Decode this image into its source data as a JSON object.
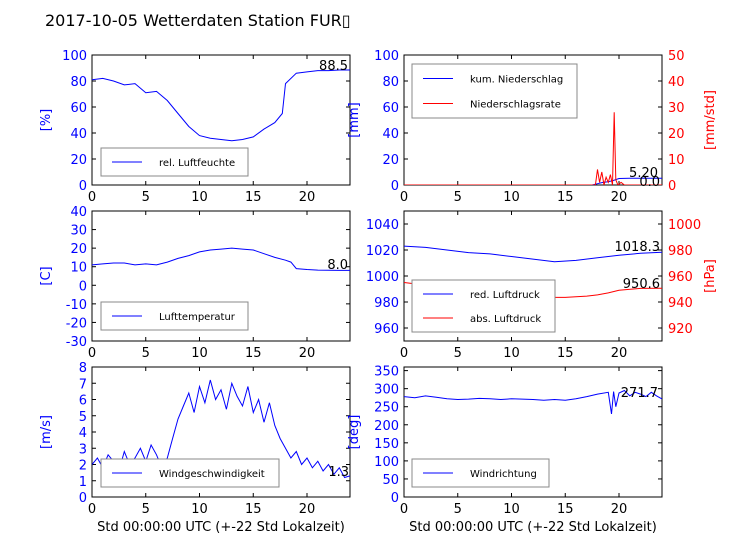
{
  "title": "2017-10-05 Wetterdaten Station FUR▯",
  "colors": {
    "blue": "#0000ff",
    "red": "#ff0000",
    "black": "#000000",
    "box_bg": "#ffffff",
    "box_border": "#888888"
  },
  "chart_data": [
    {
      "id": "humidity",
      "type": "line",
      "xlim": [
        0,
        24
      ],
      "xticks": [
        0,
        5,
        10,
        15,
        20
      ],
      "ylim": [
        0,
        100
      ],
      "yticks": [
        0,
        20,
        40,
        60,
        80,
        100
      ],
      "ylabel": "[%]",
      "ylabel_color": "blue",
      "xlabel": "",
      "value_label": "88.5",
      "legend_position": "lower-left",
      "series": [
        {
          "name": "rel. Luftfeuchte",
          "color": "blue",
          "axis": "left",
          "x": [
            0,
            1,
            2,
            3,
            4,
            5,
            6,
            7,
            8,
            9,
            10,
            11,
            12,
            13,
            14,
            15,
            16,
            17,
            17.7,
            18,
            19,
            20,
            21,
            22,
            23,
            24
          ],
          "y": [
            81,
            82,
            80,
            77,
            78,
            71,
            72,
            65,
            55,
            45,
            38,
            36,
            35,
            34,
            35,
            37,
            43,
            48,
            55,
            78,
            86,
            87,
            88,
            88,
            88.5,
            88.5
          ]
        }
      ]
    },
    {
      "id": "precipitation",
      "type": "line",
      "xlim": [
        0,
        24
      ],
      "xticks": [
        0,
        5,
        10,
        15,
        20
      ],
      "ylim": [
        0,
        100
      ],
      "yticks": [
        0,
        20,
        40,
        60,
        80,
        100
      ],
      "ylabel": "[mm]",
      "ylabel_color": "blue",
      "y2lim": [
        0,
        50
      ],
      "y2ticks": [
        0,
        10,
        20,
        30,
        40,
        50
      ],
      "y2label": "[mm/std]",
      "y2label_color": "red",
      "xlabel": "",
      "value_labels": [
        "5.20",
        "0.0"
      ],
      "legend_position": "upper-left",
      "series": [
        {
          "name": "kum. Niederschlag",
          "color": "blue",
          "axis": "left",
          "x": [
            0,
            17.5,
            18,
            18.5,
            19,
            19.5,
            20,
            21,
            22,
            23,
            24
          ],
          "y": [
            0,
            0,
            1,
            2,
            2.5,
            3.5,
            5,
            5.2,
            5.2,
            5.2,
            5.2
          ]
        },
        {
          "name": "Niederschlagsrate",
          "color": "red",
          "axis": "right",
          "x": [
            0,
            17.8,
            18.0,
            18.2,
            18.4,
            18.6,
            18.8,
            19.0,
            19.2,
            19.4,
            19.55,
            19.7,
            19.9,
            20.2,
            20.5,
            21,
            22,
            24
          ],
          "y": [
            0,
            0,
            6,
            1,
            5,
            0,
            3,
            1,
            4,
            0,
            28,
            2,
            0,
            1,
            0,
            0,
            0,
            0
          ]
        }
      ]
    },
    {
      "id": "temperature",
      "type": "line",
      "xlim": [
        0,
        24
      ],
      "xticks": [
        0,
        5,
        10,
        15,
        20
      ],
      "ylim": [
        -30,
        40
      ],
      "yticks": [
        -30,
        -20,
        -10,
        0,
        10,
        20,
        30,
        40
      ],
      "ylabel": "[C]",
      "ylabel_color": "blue",
      "xlabel": "",
      "value_label": "8.0",
      "legend_position": "lower-left",
      "series": [
        {
          "name": "Lufttemperatur",
          "color": "blue",
          "axis": "left",
          "x": [
            0,
            1,
            2,
            3,
            4,
            5,
            6,
            7,
            8,
            9,
            10,
            11,
            12,
            13,
            14,
            15,
            16,
            17,
            18,
            18.5,
            19,
            20,
            21,
            22,
            23,
            24
          ],
          "y": [
            11,
            11.5,
            12,
            12,
            11,
            11.5,
            11,
            12.5,
            14.5,
            16,
            18,
            19,
            19.5,
            20,
            19.5,
            19,
            17,
            15,
            13.5,
            12.5,
            9,
            8.5,
            8.2,
            8.1,
            8.0,
            8.0
          ]
        }
      ]
    },
    {
      "id": "pressure",
      "type": "line",
      "xlim": [
        0,
        24
      ],
      "xticks": [
        0,
        5,
        10,
        15,
        20
      ],
      "ylim": [
        950,
        1050
      ],
      "yticks": [
        960,
        980,
        1000,
        1020,
        1040
      ],
      "ylabel": "",
      "y2lim": [
        910,
        1010
      ],
      "y2ticks": [
        920,
        940,
        960,
        980,
        1000
      ],
      "y2label": "[hPa]",
      "y2label_color": "red",
      "xlabel": "",
      "value_labels": [
        "1018.3",
        "950.6"
      ],
      "legend_position": "lower-left",
      "series": [
        {
          "name": "red. Luftdruck",
          "color": "blue",
          "axis": "left",
          "x": [
            0,
            2,
            4,
            6,
            8,
            10,
            12,
            14,
            16,
            18,
            20,
            22,
            24
          ],
          "y": [
            1023,
            1022,
            1020,
            1018,
            1017,
            1015,
            1013,
            1011,
            1012,
            1014,
            1016,
            1017.5,
            1018.3
          ]
        },
        {
          "name": "abs. Luftdruck",
          "color": "red",
          "axis": "right",
          "x": [
            0,
            2,
            4,
            6,
            8,
            10,
            12,
            14,
            15,
            16,
            17,
            18,
            19,
            20,
            22,
            24
          ],
          "y": [
            955,
            953,
            950,
            948,
            947,
            946,
            945,
            943.5,
            943.5,
            944,
            944.5,
            945.5,
            947,
            949,
            950.5,
            950.6
          ]
        }
      ]
    },
    {
      "id": "wind_speed",
      "type": "line",
      "xlim": [
        0,
        24
      ],
      "xticks": [
        0,
        5,
        10,
        15,
        20
      ],
      "ylim": [
        0,
        8
      ],
      "yticks": [
        0,
        1,
        2,
        3,
        4,
        5,
        6,
        7,
        8
      ],
      "ylabel": "[m/s]",
      "ylabel_color": "blue",
      "xlabel": "Std 00:00:00 UTC (+-22 Std Lokalzeit)",
      "value_label": "1.3",
      "legend_position": "lower-left",
      "series": [
        {
          "name": "Windgeschwindigkeit",
          "color": "blue",
          "axis": "left",
          "x": [
            0,
            0.5,
            1,
            1.5,
            2,
            2.5,
            3,
            3.5,
            4,
            4.5,
            5,
            5.5,
            6,
            6.5,
            7,
            7.5,
            8,
            8.5,
            9,
            9.5,
            10,
            10.5,
            11,
            11.5,
            12,
            12.5,
            13,
            13.5,
            14,
            14.5,
            15,
            15.5,
            16,
            16.5,
            17,
            17.5,
            18,
            18.5,
            19,
            19.5,
            20,
            20.5,
            21,
            21.5,
            22,
            22.5,
            23,
            23.5,
            24
          ],
          "y": [
            2.0,
            2.4,
            1.8,
            2.6,
            2.2,
            1.6,
            2.8,
            2.0,
            2.4,
            3.0,
            2.2,
            3.2,
            2.6,
            1.8,
            2.4,
            3.6,
            4.8,
            5.6,
            6.4,
            5.2,
            6.8,
            5.8,
            7.2,
            6.0,
            6.6,
            5.4,
            7.0,
            6.2,
            5.6,
            6.8,
            5.2,
            6.0,
            4.6,
            5.8,
            4.4,
            3.6,
            3.0,
            2.4,
            2.8,
            2.0,
            2.4,
            1.8,
            2.2,
            1.6,
            2.0,
            1.4,
            1.8,
            1.2,
            1.3
          ]
        }
      ]
    },
    {
      "id": "wind_direction",
      "type": "line",
      "xlim": [
        0,
        24
      ],
      "xticks": [
        0,
        5,
        10,
        15,
        20
      ],
      "ylim": [
        0,
        360
      ],
      "yticks": [
        0,
        50,
        100,
        150,
        200,
        250,
        300,
        350
      ],
      "ylabel": "[deg]",
      "ylabel_color": "blue",
      "xlabel": "Std 00:00:00 UTC (+-22 Std Lokalzeit)",
      "value_label": "271.7",
      "legend_position": "lower-left",
      "series": [
        {
          "name": "Windrichtung",
          "color": "blue",
          "axis": "left",
          "x": [
            0,
            1,
            2,
            3,
            4,
            5,
            6,
            7,
            8,
            9,
            10,
            11,
            12,
            13,
            14,
            15,
            16,
            17,
            18,
            19,
            19.3,
            19.5,
            19.7,
            20,
            20.5,
            21,
            21.5,
            22,
            22.5,
            23,
            23.5,
            24
          ],
          "y": [
            278,
            275,
            280,
            276,
            272,
            270,
            271,
            273,
            272,
            270,
            272,
            271,
            270,
            268,
            270,
            268,
            272,
            278,
            285,
            290,
            230,
            292,
            250,
            288,
            295,
            280,
            290,
            285,
            278,
            290,
            280,
            271.7
          ]
        }
      ]
    }
  ]
}
